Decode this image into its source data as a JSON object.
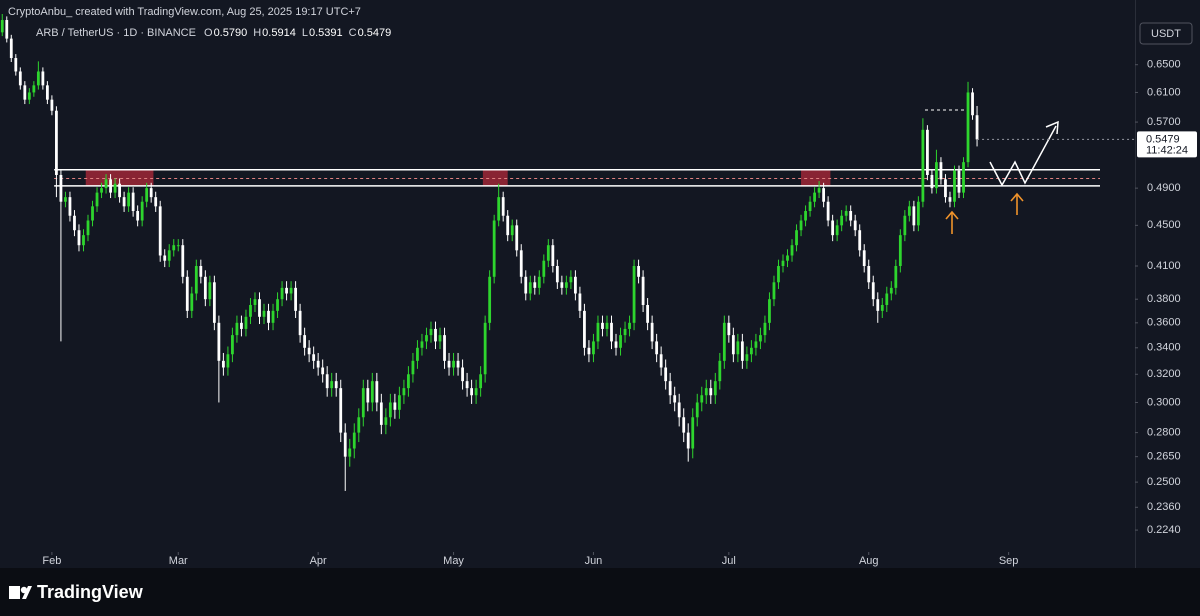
{
  "chart_data": {
    "type": "candlestick",
    "header": "CryptoAnbu_ created with TradingView.com, Aug 25, 2025 19:17 UTC+7",
    "title": "ARB / TetherUS · 1D · BINANCE",
    "ohlc_prefixes": [
      "O",
      "H",
      "L",
      "C"
    ],
    "ohlc_labels": [
      "0.5790",
      "0.5914",
      "0.5391",
      "0.5479"
    ],
    "currency": "USDT",
    "countdown": "11:42:24",
    "brand": "TradingView",
    "up_color": "#2ed52e",
    "down_color": "#ffffff",
    "log_scale": true,
    "grid": false,
    "xlim": [
      0.5,
      252
    ],
    "xticks": [
      {
        "value": 12,
        "label": "Feb"
      },
      {
        "value": 40,
        "label": "Mar"
      },
      {
        "value": 71,
        "label": "Apr"
      },
      {
        "value": 101,
        "label": "May"
      },
      {
        "value": 132,
        "label": "Jun"
      },
      {
        "value": 162,
        "label": "Jul"
      },
      {
        "value": 193,
        "label": "Aug"
      },
      {
        "value": 224,
        "label": "Sep"
      }
    ],
    "ylim": [
      0.215,
      0.725
    ],
    "yticks": [
      {
        "value": 0.65,
        "label": "0.6500"
      },
      {
        "value": 0.61,
        "label": "0.6100"
      },
      {
        "value": 0.57,
        "label": "0.5700"
      },
      {
        "value": 0.49,
        "label": "0.4900"
      },
      {
        "value": 0.45,
        "label": "0.4500"
      },
      {
        "value": 0.41,
        "label": "0.4100"
      },
      {
        "value": 0.38,
        "label": "0.3800"
      },
      {
        "value": 0.36,
        "label": "0.3600"
      },
      {
        "value": 0.34,
        "label": "0.3400"
      },
      {
        "value": 0.32,
        "label": "0.3200"
      },
      {
        "value": 0.3,
        "label": "0.3000"
      },
      {
        "value": 0.28,
        "label": "0.2800"
      },
      {
        "value": 0.265,
        "label": "0.2650"
      },
      {
        "value": 0.25,
        "label": "0.2500"
      },
      {
        "value": 0.236,
        "label": "0.2360"
      },
      {
        "value": 0.224,
        "label": "0.2240"
      }
    ],
    "zone": [
      0.4925,
      0.511
    ],
    "zone_mid": 0.501,
    "highlights": [
      [
        19.5,
        34.5
      ],
      [
        107.5,
        113
      ],
      [
        178,
        184.5
      ]
    ],
    "open": [
      0.69,
      0.7,
      0.72,
      0.69,
      0.66,
      0.64,
      0.62,
      0.6,
      0.61,
      0.62,
      0.64,
      0.62,
      0.6,
      0.585,
      0.505,
      0.475,
      0.48,
      0.46,
      0.445,
      0.43,
      0.44,
      0.455,
      0.47,
      0.485,
      0.49,
      0.5,
      0.485,
      0.495,
      0.48,
      0.47,
      0.485,
      0.465,
      0.455,
      0.475,
      0.49,
      0.48,
      0.47,
      0.42,
      0.415,
      0.425,
      0.43,
      0.43,
      0.4,
      0.37,
      0.385,
      0.41,
      0.4,
      0.38,
      0.395,
      0.36,
      0.33,
      0.325,
      0.335,
      0.35,
      0.36,
      0.355,
      0.365,
      0.375,
      0.38,
      0.365,
      0.37,
      0.36,
      0.37,
      0.38,
      0.39,
      0.385,
      0.39,
      0.37,
      0.35,
      0.34,
      0.335,
      0.33,
      0.325,
      0.32,
      0.31,
      0.315,
      0.31,
      0.28,
      0.265,
      0.27,
      0.28,
      0.29,
      0.31,
      0.3,
      0.315,
      0.3,
      0.285,
      0.29,
      0.3,
      0.295,
      0.305,
      0.31,
      0.32,
      0.33,
      0.34,
      0.345,
      0.35,
      0.355,
      0.345,
      0.35,
      0.33,
      0.325,
      0.33,
      0.325,
      0.315,
      0.31,
      0.305,
      0.31,
      0.32,
      0.36,
      0.4,
      0.455,
      0.48,
      0.46,
      0.44,
      0.45,
      0.425,
      0.4,
      0.385,
      0.395,
      0.39,
      0.4,
      0.415,
      0.43,
      0.41,
      0.395,
      0.39,
      0.395,
      0.4,
      0.385,
      0.37,
      0.34,
      0.335,
      0.345,
      0.36,
      0.355,
      0.36,
      0.345,
      0.34,
      0.35,
      0.355,
      0.36,
      0.41,
      0.4,
      0.375,
      0.36,
      0.345,
      0.335,
      0.325,
      0.315,
      0.305,
      0.3,
      0.29,
      0.28,
      0.27,
      0.29,
      0.3,
      0.305,
      0.31,
      0.305,
      0.315,
      0.33,
      0.36,
      0.35,
      0.335,
      0.345,
      0.33,
      0.335,
      0.34,
      0.345,
      0.35,
      0.36,
      0.38,
      0.395,
      0.41,
      0.415,
      0.42,
      0.43,
      0.445,
      0.455,
      0.465,
      0.475,
      0.485,
      0.49,
      0.475,
      0.455,
      0.44,
      0.45,
      0.46,
      0.465,
      0.455,
      0.445,
      0.425,
      0.41,
      0.395,
      0.38,
      0.37,
      0.375,
      0.385,
      0.39,
      0.41,
      0.44,
      0.46,
      0.47,
      0.45,
      0.475,
      0.56,
      0.505,
      0.49,
      0.52,
      0.5,
      0.48,
      0.475,
      0.51,
      0.485,
      0.52,
      0.61,
      0.579
    ],
    "high": [
      0.712,
      0.73,
      0.726,
      0.696,
      0.666,
      0.646,
      0.626,
      0.616,
      0.626,
      0.655,
      0.646,
      0.626,
      0.606,
      0.591,
      0.511,
      0.486,
      0.486,
      0.466,
      0.451,
      0.446,
      0.461,
      0.476,
      0.491,
      0.496,
      0.506,
      0.506,
      0.501,
      0.501,
      0.486,
      0.491,
      0.491,
      0.471,
      0.481,
      0.496,
      0.496,
      0.486,
      0.476,
      0.426,
      0.431,
      0.436,
      0.436,
      0.436,
      0.406,
      0.391,
      0.416,
      0.416,
      0.406,
      0.401,
      0.401,
      0.366,
      0.336,
      0.341,
      0.356,
      0.366,
      0.366,
      0.371,
      0.381,
      0.386,
      0.386,
      0.376,
      0.376,
      0.376,
      0.386,
      0.396,
      0.396,
      0.396,
      0.396,
      0.376,
      0.356,
      0.346,
      0.341,
      0.336,
      0.331,
      0.326,
      0.321,
      0.321,
      0.316,
      0.286,
      0.276,
      0.286,
      0.296,
      0.316,
      0.316,
      0.321,
      0.321,
      0.306,
      0.296,
      0.306,
      0.306,
      0.311,
      0.316,
      0.326,
      0.336,
      0.346,
      0.351,
      0.356,
      0.361,
      0.361,
      0.356,
      0.356,
      0.336,
      0.336,
      0.336,
      0.331,
      0.321,
      0.316,
      0.316,
      0.326,
      0.366,
      0.406,
      0.461,
      0.495,
      0.486,
      0.466,
      0.456,
      0.456,
      0.431,
      0.406,
      0.401,
      0.401,
      0.406,
      0.421,
      0.436,
      0.436,
      0.416,
      0.401,
      0.401,
      0.406,
      0.406,
      0.391,
      0.376,
      0.346,
      0.351,
      0.366,
      0.366,
      0.366,
      0.366,
      0.351,
      0.356,
      0.361,
      0.366,
      0.416,
      0.416,
      0.406,
      0.381,
      0.366,
      0.351,
      0.341,
      0.331,
      0.321,
      0.311,
      0.306,
      0.296,
      0.286,
      0.296,
      0.306,
      0.311,
      0.316,
      0.316,
      0.321,
      0.336,
      0.366,
      0.366,
      0.356,
      0.351,
      0.351,
      0.341,
      0.346,
      0.351,
      0.356,
      0.366,
      0.386,
      0.401,
      0.416,
      0.421,
      0.426,
      0.436,
      0.451,
      0.461,
      0.471,
      0.481,
      0.491,
      0.498,
      0.496,
      0.481,
      0.461,
      0.456,
      0.466,
      0.471,
      0.471,
      0.461,
      0.451,
      0.431,
      0.416,
      0.401,
      0.386,
      0.381,
      0.391,
      0.396,
      0.416,
      0.446,
      0.466,
      0.476,
      0.476,
      0.481,
      0.575,
      0.566,
      0.511,
      0.535,
      0.526,
      0.506,
      0.486,
      0.516,
      0.516,
      0.526,
      0.625,
      0.616,
      0.5914
    ],
    "low": [
      0.684,
      0.694,
      0.684,
      0.654,
      0.634,
      0.614,
      0.594,
      0.594,
      0.604,
      0.614,
      0.614,
      0.594,
      0.579,
      0.48,
      0.345,
      0.469,
      0.454,
      0.439,
      0.424,
      0.424,
      0.434,
      0.449,
      0.464,
      0.479,
      0.484,
      0.479,
      0.479,
      0.474,
      0.464,
      0.464,
      0.459,
      0.449,
      0.449,
      0.469,
      0.474,
      0.464,
      0.414,
      0.409,
      0.409,
      0.419,
      0.424,
      0.394,
      0.364,
      0.364,
      0.379,
      0.394,
      0.374,
      0.374,
      0.354,
      0.3,
      0.319,
      0.319,
      0.329,
      0.344,
      0.349,
      0.349,
      0.359,
      0.369,
      0.359,
      0.359,
      0.354,
      0.354,
      0.364,
      0.374,
      0.379,
      0.379,
      0.364,
      0.344,
      0.334,
      0.329,
      0.324,
      0.319,
      0.314,
      0.304,
      0.304,
      0.304,
      0.274,
      0.245,
      0.259,
      0.264,
      0.274,
      0.284,
      0.294,
      0.294,
      0.294,
      0.279,
      0.279,
      0.284,
      0.289,
      0.289,
      0.299,
      0.304,
      0.314,
      0.324,
      0.334,
      0.339,
      0.344,
      0.339,
      0.339,
      0.324,
      0.319,
      0.319,
      0.319,
      0.309,
      0.304,
      0.299,
      0.299,
      0.304,
      0.314,
      0.354,
      0.394,
      0.449,
      0.454,
      0.434,
      0.434,
      0.419,
      0.394,
      0.379,
      0.379,
      0.384,
      0.384,
      0.394,
      0.409,
      0.404,
      0.389,
      0.384,
      0.384,
      0.389,
      0.379,
      0.364,
      0.334,
      0.329,
      0.329,
      0.339,
      0.349,
      0.349,
      0.339,
      0.334,
      0.334,
      0.344,
      0.349,
      0.354,
      0.394,
      0.369,
      0.354,
      0.339,
      0.329,
      0.319,
      0.309,
      0.299,
      0.294,
      0.284,
      0.274,
      0.262,
      0.264,
      0.284,
      0.294,
      0.299,
      0.299,
      0.299,
      0.309,
      0.324,
      0.344,
      0.329,
      0.329,
      0.324,
      0.324,
      0.329,
      0.334,
      0.339,
      0.344,
      0.354,
      0.374,
      0.389,
      0.404,
      0.409,
      0.414,
      0.424,
      0.439,
      0.449,
      0.459,
      0.469,
      0.479,
      0.469,
      0.449,
      0.434,
      0.434,
      0.444,
      0.454,
      0.449,
      0.439,
      0.419,
      0.404,
      0.389,
      0.374,
      0.36,
      0.364,
      0.369,
      0.379,
      0.384,
      0.404,
      0.434,
      0.454,
      0.444,
      0.444,
      0.469,
      0.499,
      0.484,
      0.484,
      0.494,
      0.474,
      0.469,
      0.469,
      0.479,
      0.479,
      0.514,
      0.573,
      0.5391
    ],
    "close": [
      0.7,
      0.72,
      0.69,
      0.66,
      0.64,
      0.62,
      0.6,
      0.61,
      0.62,
      0.64,
      0.62,
      0.6,
      0.585,
      0.505,
      0.475,
      0.48,
      0.46,
      0.445,
      0.43,
      0.44,
      0.455,
      0.47,
      0.485,
      0.49,
      0.5,
      0.485,
      0.495,
      0.48,
      0.47,
      0.485,
      0.465,
      0.455,
      0.475,
      0.49,
      0.48,
      0.47,
      0.42,
      0.415,
      0.425,
      0.43,
      0.43,
      0.4,
      0.37,
      0.385,
      0.41,
      0.4,
      0.38,
      0.395,
      0.36,
      0.33,
      0.325,
      0.335,
      0.35,
      0.36,
      0.355,
      0.365,
      0.375,
      0.38,
      0.365,
      0.37,
      0.36,
      0.37,
      0.38,
      0.39,
      0.385,
      0.39,
      0.37,
      0.35,
      0.34,
      0.335,
      0.33,
      0.325,
      0.32,
      0.31,
      0.315,
      0.31,
      0.28,
      0.265,
      0.27,
      0.28,
      0.29,
      0.31,
      0.3,
      0.315,
      0.3,
      0.285,
      0.29,
      0.3,
      0.295,
      0.305,
      0.31,
      0.32,
      0.33,
      0.34,
      0.345,
      0.35,
      0.355,
      0.345,
      0.35,
      0.33,
      0.325,
      0.33,
      0.325,
      0.315,
      0.31,
      0.305,
      0.31,
      0.32,
      0.36,
      0.4,
      0.455,
      0.48,
      0.46,
      0.44,
      0.45,
      0.425,
      0.4,
      0.385,
      0.395,
      0.39,
      0.4,
      0.415,
      0.43,
      0.41,
      0.395,
      0.39,
      0.395,
      0.4,
      0.385,
      0.37,
      0.34,
      0.335,
      0.345,
      0.36,
      0.355,
      0.36,
      0.345,
      0.34,
      0.35,
      0.355,
      0.36,
      0.41,
      0.4,
      0.375,
      0.36,
      0.345,
      0.335,
      0.325,
      0.315,
      0.305,
      0.3,
      0.29,
      0.28,
      0.27,
      0.29,
      0.3,
      0.305,
      0.31,
      0.305,
      0.315,
      0.33,
      0.36,
      0.35,
      0.335,
      0.345,
      0.33,
      0.335,
      0.34,
      0.345,
      0.35,
      0.36,
      0.38,
      0.395,
      0.41,
      0.415,
      0.42,
      0.43,
      0.445,
      0.455,
      0.465,
      0.475,
      0.485,
      0.49,
      0.475,
      0.455,
      0.44,
      0.45,
      0.46,
      0.465,
      0.455,
      0.445,
      0.425,
      0.41,
      0.395,
      0.38,
      0.37,
      0.375,
      0.385,
      0.39,
      0.41,
      0.44,
      0.46,
      0.47,
      0.45,
      0.475,
      0.56,
      0.505,
      0.49,
      0.52,
      0.5,
      0.48,
      0.475,
      0.51,
      0.485,
      0.52,
      0.61,
      0.579,
      0.5479
    ]
  }
}
